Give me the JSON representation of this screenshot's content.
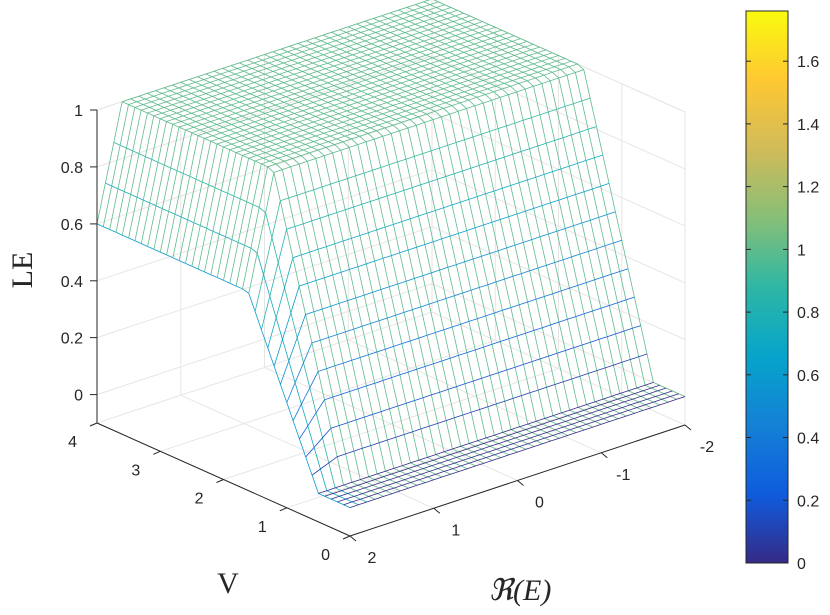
{
  "chart_data": {
    "type": "surface",
    "title": "",
    "xlabel": "ℜ(E)",
    "ylabel": "V",
    "zlabel": "LE",
    "xlim": [
      -2,
      2
    ],
    "ylim": [
      0,
      4
    ],
    "zlim": [
      -0.1,
      1
    ],
    "grid": true,
    "x_ticks": [
      2,
      1,
      0,
      -1,
      -2
    ],
    "x_tick_labels": [
      "2",
      "1",
      "0",
      "-1",
      "-2"
    ],
    "y_ticks": [
      0,
      1,
      2,
      3,
      4
    ],
    "y_tick_labels": [
      "0",
      "1",
      "2",
      "3",
      "4"
    ],
    "z_ticks": [
      0,
      0.2,
      0.4,
      0.6,
      0.8,
      1
    ],
    "z_tick_labels": [
      "0",
      "0.2",
      "0.4",
      "0.6",
      "0.8",
      "1"
    ],
    "surface_description_values": {
      "x_samples": 41,
      "y_samples": 41,
      "max_LE_at_V4": 1,
      "LE_at_E_edge_V4": 0.6
    },
    "colorbar": {
      "colormap": "parula",
      "clim": [
        0,
        1.76
      ],
      "placement": "right",
      "ticks": [
        0,
        0.2,
        0.4,
        0.6,
        0.8,
        1,
        1.2,
        1.4,
        1.6
      ],
      "tick_labels": [
        "0",
        "0.2",
        "0.4",
        "0.6",
        "0.8",
        "1",
        "1.2",
        "1.4",
        "1.6"
      ],
      "colors": [
        "#352a87",
        "#0f5cdd",
        "#1481d6",
        "#06a4ca",
        "#2eb7a4",
        "#87bf77",
        "#d1bb59",
        "#fec832",
        "#f9fb0e"
      ]
    }
  }
}
